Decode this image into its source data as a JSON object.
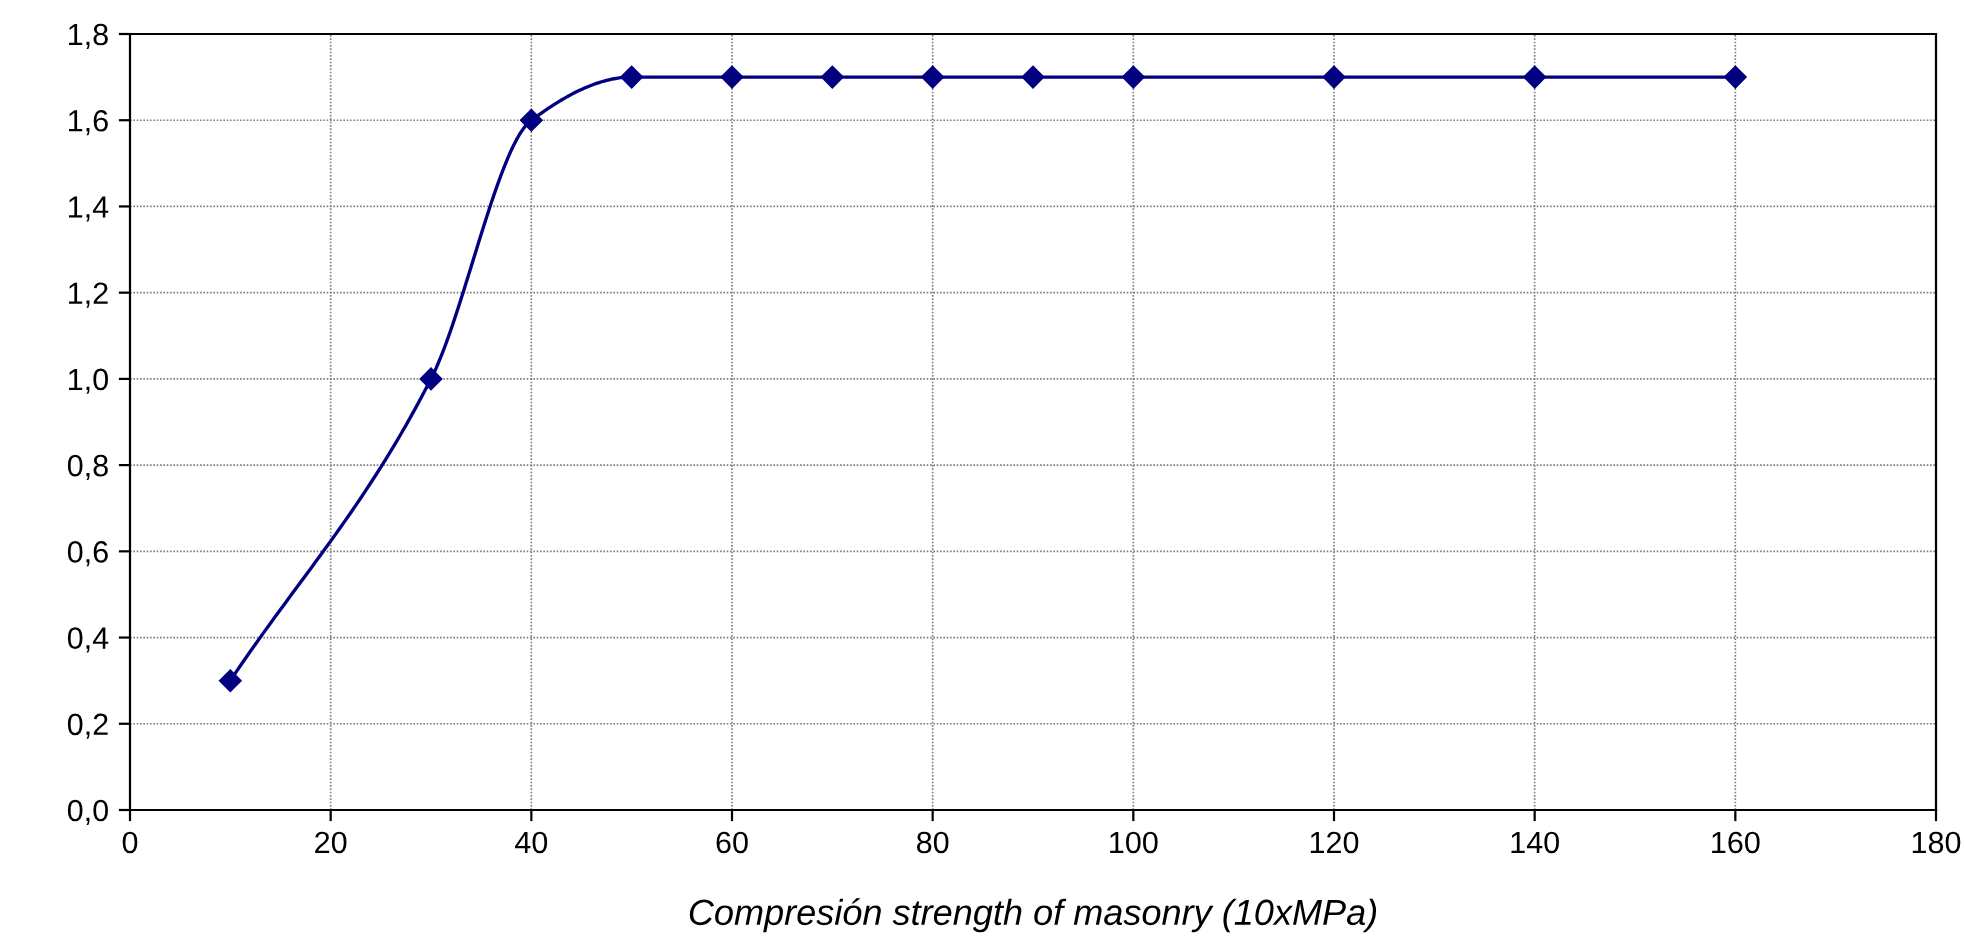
{
  "chart_data": {
    "type": "line",
    "xlabel": "Compresión strength of masonry (10xMPa)",
    "x": [
      10,
      30,
      40,
      50,
      60,
      70,
      80,
      90,
      100,
      120,
      140,
      160
    ],
    "series": [
      {
        "color": "#000080",
        "values": [
          0.3,
          1.0,
          1.6,
          1.7,
          1.7,
          1.7,
          1.7,
          1.7,
          1.7,
          1.7,
          1.7,
          1.7
        ]
      }
    ],
    "xlim": [
      0,
      180
    ],
    "xticks": [
      0,
      20,
      40,
      60,
      80,
      100,
      120,
      140,
      160,
      180
    ],
    "ylim": [
      0,
      1.8
    ],
    "yticks": [
      {
        "value": 0,
        "label": "0,0"
      },
      {
        "value": 0.2,
        "label": "0,2"
      },
      {
        "value": 0.4,
        "label": "0,4"
      },
      {
        "value": 0.6,
        "label": "0,6"
      },
      {
        "value": 0.8,
        "label": "0,8"
      },
      {
        "value": 1.0,
        "label": "1,0"
      },
      {
        "value": 1.2,
        "label": "1,2"
      },
      {
        "value": 1.4,
        "label": "1,4"
      },
      {
        "value": 1.6,
        "label": "1,6"
      },
      {
        "value": 1.8,
        "label": "1,8"
      }
    ],
    "grid": true,
    "marker": "diamond",
    "line_style": "solid"
  }
}
